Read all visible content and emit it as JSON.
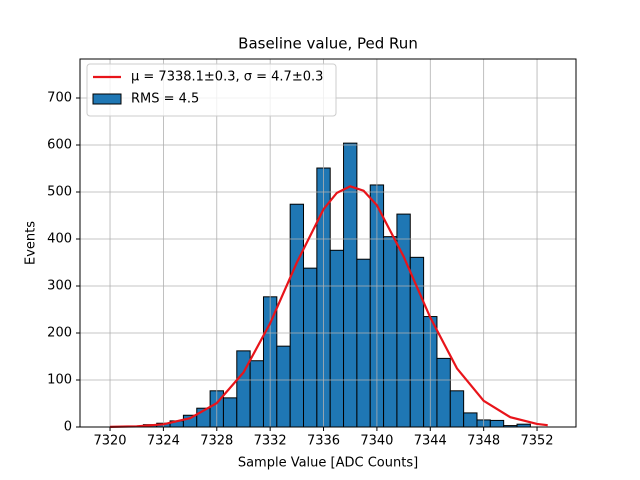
{
  "chart_data": {
    "type": "histogram",
    "title": "Baseline value, Ped Run",
    "x_label": "Sample Value [ADC Counts]",
    "y_label": "Events",
    "xlim": [
      7317.75,
      7354.92
    ],
    "ylim": [
      0,
      783
    ],
    "xticks": [
      7320,
      7324,
      7328,
      7332,
      7336,
      7340,
      7344,
      7348,
      7352
    ],
    "yticks": [
      0,
      100,
      200,
      300,
      400,
      500,
      600,
      700
    ],
    "grid": true,
    "legend": "upper left",
    "series": [
      {
        "name": "μ = 7338.1±0.3, σ = 4.7±0.3",
        "type": "line",
        "color": "#e8141a",
        "x": [
          7320,
          7322,
          7324,
          7326,
          7328,
          7330,
          7332,
          7334,
          7336,
          7337,
          7338,
          7339,
          7340,
          7342,
          7344,
          7346,
          7348,
          7350,
          7352,
          7352.8
        ],
        "values": [
          0.3,
          1.4,
          5.7,
          18.6,
          50.9,
          116,
          220.6,
          350,
          463.4,
          498.2,
          512,
          502.7,
          471.8,
          362.9,
          232.9,
          124.7,
          55.7,
          20.8,
          6.5,
          3.9
        ]
      },
      {
        "name": "RMS = 4.5",
        "type": "histogram",
        "color": "#1f77b4",
        "bins": [
          7321.5,
          7322.5,
          7323.5,
          7324.5,
          7325.5,
          7326.5,
          7327.5,
          7328.5,
          7329.5,
          7330.5,
          7331.5,
          7332.5,
          7333.5,
          7334.5,
          7335.5,
          7336.5,
          7337.5,
          7338.5,
          7339.5,
          7340.5,
          7341.5,
          7342.5,
          7343.5,
          7344.5,
          7345.5,
          7346.5,
          7347.5,
          7348.5,
          7349.5,
          7350.5,
          7351.5
        ],
        "values": [
          2,
          5,
          8,
          13,
          25,
          40,
          77,
          62,
          162,
          141,
          277,
          172,
          474,
          338,
          551,
          376,
          604,
          357,
          515,
          405,
          453,
          361,
          235,
          146,
          77,
          30,
          15,
          14,
          3,
          6
        ]
      }
    ]
  }
}
